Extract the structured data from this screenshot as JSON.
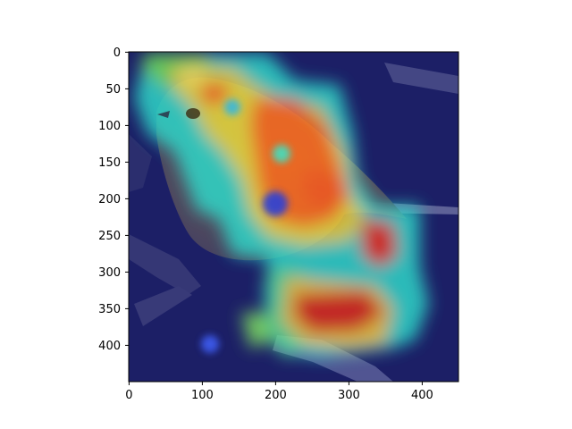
{
  "figure": {
    "image_subject": "bird-on-branch-with-saliency-heatmap-overlay",
    "colormap": "jet",
    "x_ticks": [
      "0",
      "100",
      "200",
      "300",
      "400"
    ],
    "y_ticks": [
      "0",
      "50",
      "100",
      "150",
      "200",
      "250",
      "300",
      "350",
      "400"
    ],
    "x_range": [
      0,
      450
    ],
    "y_range": [
      0,
      450
    ],
    "axis_color": "#000000",
    "background_color": "#ffffff"
  }
}
